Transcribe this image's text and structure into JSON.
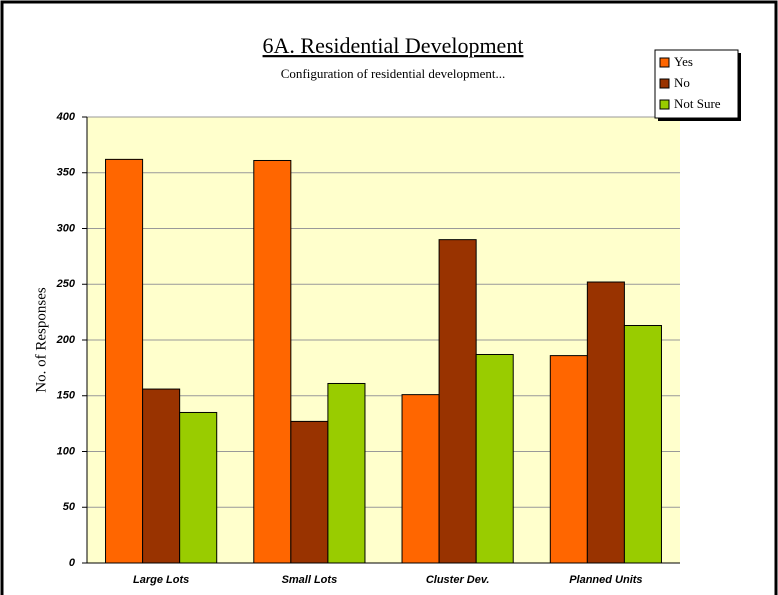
{
  "chart_data": {
    "type": "bar",
    "title": "6A. Residential Development",
    "subtitle": "Configuration of residential development...",
    "y_label": "No. of Responses",
    "categories": [
      "Large Lots",
      "Small Lots",
      "Cluster Dev.",
      "Planned Units"
    ],
    "series": [
      {
        "name": "Yes",
        "color": "#ff6600",
        "values": [
          362,
          361,
          151,
          186
        ]
      },
      {
        "name": "No",
        "color": "#993300",
        "values": [
          156,
          127,
          290,
          252
        ]
      },
      {
        "name": "Not Sure",
        "color": "#99cc00",
        "values": [
          135,
          161,
          187,
          213
        ]
      }
    ],
    "ylim": [
      0,
      400
    ],
    "yticks": [
      0,
      50,
      100,
      150,
      200,
      250,
      300,
      350,
      400
    ],
    "grid": true,
    "legend": "top-right"
  }
}
